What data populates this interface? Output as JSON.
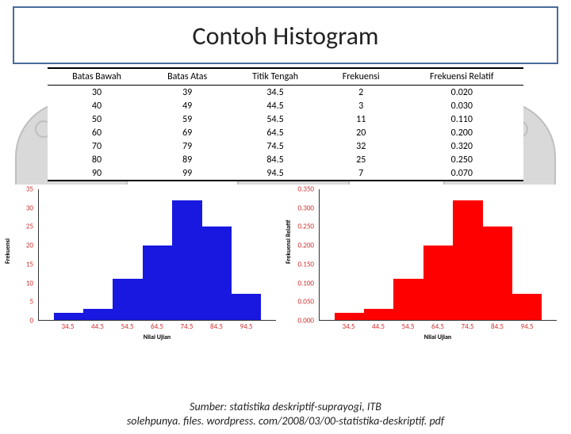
{
  "title": {
    "text": "Contoh Histogram",
    "fontsize": 32,
    "color": "#222222"
  },
  "title_box": {
    "border_color": "#4a6a9a",
    "border_width": 2
  },
  "table": {
    "columns": [
      "Batas Bawah",
      "Batas Atas",
      "Titik Tengah",
      "Frekuensi",
      "Frekuensi Relatif"
    ],
    "rows": [
      [
        "30",
        "39",
        "34.5",
        "2",
        "0.020"
      ],
      [
        "40",
        "49",
        "44.5",
        "3",
        "0.030"
      ],
      [
        "50",
        "59",
        "54.5",
        "11",
        "0.110"
      ],
      [
        "60",
        "69",
        "64.5",
        "20",
        "0.200"
      ],
      [
        "70",
        "79",
        "74.5",
        "32",
        "0.320"
      ],
      [
        "80",
        "89",
        "84.5",
        "25",
        "0.250"
      ],
      [
        "90",
        "99",
        "94.5",
        "7",
        "0.070"
      ]
    ],
    "header_fontsize": 12,
    "cell_fontsize": 12,
    "rule_color": "#000000"
  },
  "chart_left": {
    "type": "histogram",
    "categories": [
      "34.5",
      "44.5",
      "54.5",
      "64.5",
      "74.5",
      "84.5",
      "94.5"
    ],
    "values": [
      2,
      3,
      11,
      20,
      32,
      25,
      7
    ],
    "bar_color": "#1818e0",
    "ylabel": "Frekuensi",
    "xlabel": "Nilai Ujian",
    "ylim": [
      0,
      35
    ],
    "yticks": [
      "0",
      "5",
      "10",
      "15",
      "20",
      "25",
      "30",
      "35"
    ],
    "tick_color": "#d03030",
    "tick_fontsize": 9,
    "label_fontsize": 8,
    "axis_color": "#333333",
    "bar_width": 1.0,
    "background_color": "#ffffff"
  },
  "chart_right": {
    "type": "histogram",
    "categories": [
      "34.5",
      "44.5",
      "54.5",
      "64.5",
      "74.5",
      "84.5",
      "94.5"
    ],
    "values": [
      0.02,
      0.03,
      0.11,
      0.2,
      0.32,
      0.25,
      0.07
    ],
    "bar_color": "#ff0000",
    "ylabel": "Frekuensi Relatif",
    "xlabel": "Nilai Ujian",
    "ylim": [
      0,
      0.35
    ],
    "yticks": [
      "0.000",
      "0.050",
      "0.100",
      "0.150",
      "0.200",
      "0.250",
      "0.300",
      "0.350"
    ],
    "tick_color": "#d03030",
    "tick_fontsize": 9,
    "label_fontsize": 8,
    "axis_color": "#333333",
    "bar_width": 1.0,
    "background_color": "#ffffff"
  },
  "footer": {
    "line1": "Sumber: statistika deskriptif-suprayogi, ITB",
    "line2": "solehpunya. files. wordpress. com/2008/03/00-statistika-deskriptif. pdf",
    "fontsize": 14,
    "color": "#222222",
    "style": "italic"
  },
  "background_shapes": {
    "fill": "#d9d9d9",
    "stroke": "#bfbfbf"
  }
}
